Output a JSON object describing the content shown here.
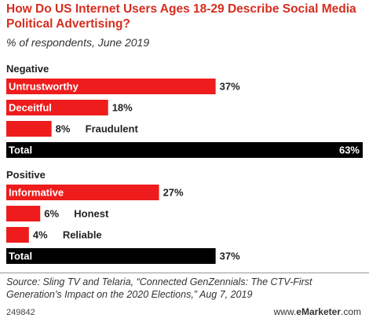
{
  "chart_data": {
    "type": "bar",
    "title": "How Do US Internet Users Ages 18-29 Describe Social Media Political Advertising?",
    "subtitle": "% of respondents, June 2019",
    "unit": "%",
    "groups": [
      {
        "label": "Negative",
        "items": [
          {
            "label": "Untrustworthy",
            "value": 37,
            "display": "37%"
          },
          {
            "label": "Deceitful",
            "value": 18,
            "display": "18%"
          },
          {
            "label": "Fraudulent",
            "value": 8,
            "display": "8%"
          }
        ],
        "total": {
          "label": "Total",
          "value": 63,
          "display": "63%"
        }
      },
      {
        "label": "Positive",
        "items": [
          {
            "label": "Informative",
            "value": 27,
            "display": "27%"
          },
          {
            "label": "Honest",
            "value": 6,
            "display": "6%"
          },
          {
            "label": "Reliable",
            "value": 4,
            "display": "4%"
          }
        ],
        "total": {
          "label": "Total",
          "value": 37,
          "display": "37%"
        }
      }
    ],
    "xlim": [
      0,
      63
    ],
    "colors": {
      "item_bar": "#ee1c1c",
      "total_bar": "#000000",
      "title": "#d62d1f"
    }
  },
  "footer": {
    "source": "Source: Sling TV and Telaria, “Connected GenZennials: The CTV-First Generation’s Impact on the 2020 Elections,” Aug 7, 2019",
    "chart_id": "249842",
    "brand_url": "www.",
    "brand_name": "eMarketer",
    "brand_tld": ".com"
  }
}
